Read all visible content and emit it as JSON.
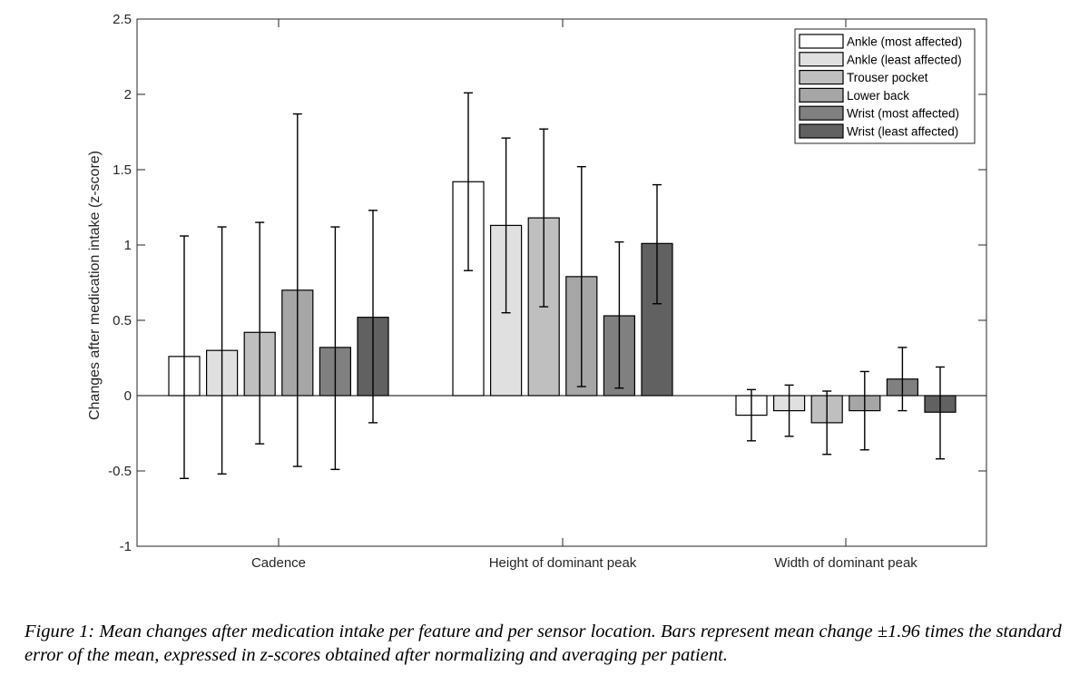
{
  "chart_data": {
    "type": "bar",
    "ylabel": "Changes after medication intake (z-score)",
    "xlabel": "",
    "ylim": [
      -1,
      2.5
    ],
    "yticks": [
      "-1",
      "-0.5",
      "0",
      "0.5",
      "1",
      "1.5",
      "2",
      "2.5"
    ],
    "categories": [
      "Cadence",
      "Height of dominant peak",
      "Width of dominant peak"
    ],
    "legend_position": "top-right",
    "grid": false,
    "series": [
      {
        "name": "Ankle (most affected)",
        "color": "#ffffff",
        "values": [
          0.26,
          1.42,
          -0.13
        ],
        "err_low": [
          -0.55,
          0.83,
          -0.3
        ],
        "err_high": [
          1.06,
          2.01,
          0.04
        ]
      },
      {
        "name": "Ankle (least affected)",
        "color": "#e0e0e0",
        "values": [
          0.3,
          1.13,
          -0.1
        ],
        "err_low": [
          -0.52,
          0.55,
          -0.27
        ],
        "err_high": [
          1.12,
          1.71,
          0.07
        ]
      },
      {
        "name": "Trouser pocket",
        "color": "#bfbfbf",
        "values": [
          0.42,
          1.18,
          -0.18
        ],
        "err_low": [
          -0.32,
          0.59,
          -0.39
        ],
        "err_high": [
          1.15,
          1.77,
          0.03
        ]
      },
      {
        "name": "Lower back",
        "color": "#a6a6a6",
        "values": [
          0.7,
          0.79,
          -0.1
        ],
        "err_low": [
          -0.47,
          0.06,
          -0.36
        ],
        "err_high": [
          1.87,
          1.52,
          0.16
        ]
      },
      {
        "name": "Wrist (most affected)",
        "color": "#808080",
        "values": [
          0.32,
          0.53,
          0.11
        ],
        "err_low": [
          -0.49,
          0.05,
          -0.1
        ],
        "err_high": [
          1.12,
          1.02,
          0.32
        ]
      },
      {
        "name": "Wrist (least affected)",
        "color": "#616161",
        "values": [
          0.52,
          1.01,
          -0.11
        ],
        "err_low": [
          -0.18,
          0.61,
          -0.42
        ],
        "err_high": [
          1.23,
          1.4,
          0.19
        ]
      }
    ]
  },
  "caption": {
    "text": "Figure 1: Mean changes after medication intake per feature and per sensor location. Bars represent mean change ±1.96 times the standard error of the mean, expressed in z-scores obtained after normalizing and averaging per patient."
  }
}
